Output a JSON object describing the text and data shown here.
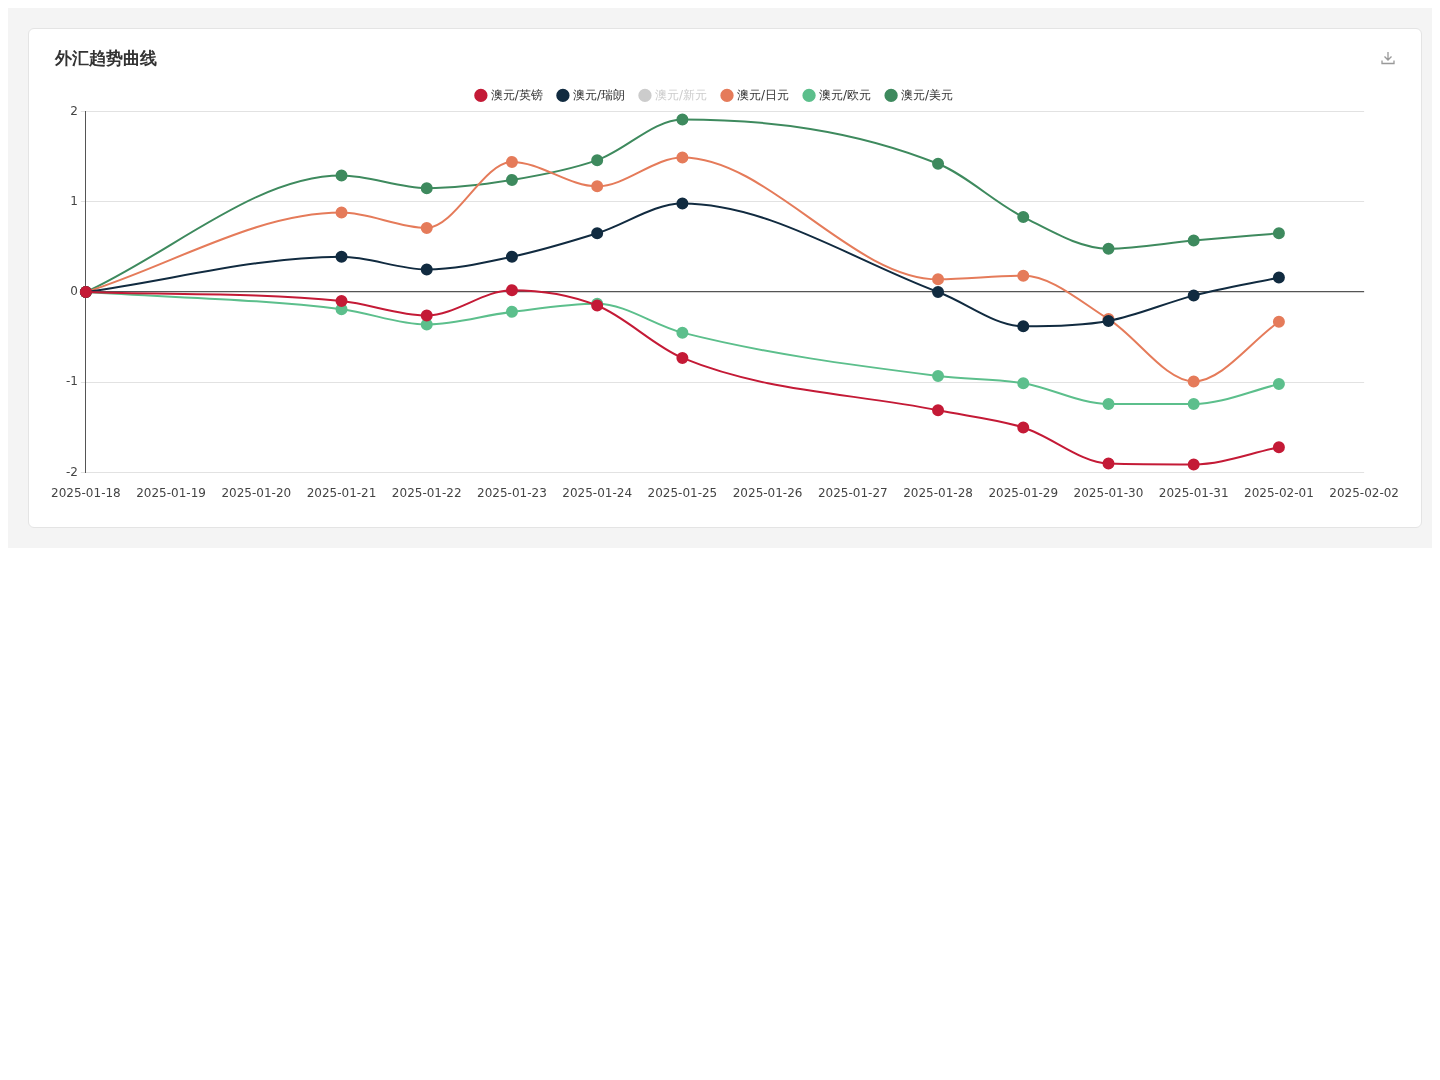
{
  "chart_data": {
    "type": "line",
    "title": "外汇趋势曲线",
    "categories": [
      "2025-01-18",
      "2025-01-19",
      "2025-01-20",
      "2025-01-21",
      "2025-01-22",
      "2025-01-23",
      "2025-01-24",
      "2025-01-25",
      "2025-01-26",
      "2025-01-27",
      "2025-01-28",
      "2025-01-29",
      "2025-01-30",
      "2025-01-31",
      "2025-02-01",
      "2025-02-02"
    ],
    "series": [
      {
        "name": "澳元/英镑",
        "color": "#c41a36",
        "values": [
          0,
          null,
          null,
          -0.1,
          -0.26,
          0.02,
          -0.15,
          -0.73,
          null,
          null,
          -1.31,
          -1.5,
          -1.9,
          -1.91,
          -1.72,
          null
        ]
      },
      {
        "name": "澳元/瑞朗",
        "color": "#112b40",
        "values": [
          0,
          null,
          null,
          0.39,
          0.25,
          0.39,
          0.65,
          0.98,
          null,
          null,
          0,
          -0.38,
          -0.32,
          -0.04,
          0.16,
          null
        ]
      },
      {
        "name": "澳元/新元",
        "color": "#cccccc",
        "values": [
          null,
          null,
          null,
          null,
          null,
          null,
          null,
          null,
          null,
          null,
          null,
          null,
          null,
          null,
          null,
          null
        ]
      },
      {
        "name": "澳元/日元",
        "color": "#e57b5a",
        "values": [
          0,
          null,
          null,
          0.88,
          0.71,
          1.44,
          1.17,
          1.49,
          null,
          null,
          0.14,
          0.18,
          -0.3,
          -0.99,
          -0.33,
          null
        ]
      },
      {
        "name": "澳元/欧元",
        "color": "#5cbf8c",
        "values": [
          0,
          null,
          null,
          -0.19,
          -0.36,
          -0.22,
          -0.13,
          -0.45,
          null,
          null,
          -0.93,
          -1.01,
          -1.24,
          -1.24,
          -1.02,
          null
        ]
      },
      {
        "name": "澳元/美元",
        "color": "#3e8a5e",
        "values": [
          0,
          null,
          null,
          1.29,
          1.15,
          1.24,
          1.46,
          1.91,
          null,
          null,
          1.42,
          0.83,
          0.48,
          0.57,
          0.65,
          null
        ]
      }
    ],
    "ylim": [
      -2,
      2
    ],
    "yticks": [
      -2,
      -1,
      0,
      1,
      2
    ],
    "grid": "y",
    "legend": "top",
    "marker": "circle",
    "line_style": "solid"
  }
}
